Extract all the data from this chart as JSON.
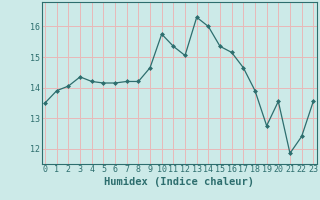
{
  "x": [
    0,
    1,
    2,
    3,
    4,
    5,
    6,
    7,
    8,
    9,
    10,
    11,
    12,
    13,
    14,
    15,
    16,
    17,
    18,
    19,
    20,
    21,
    22,
    23
  ],
  "y": [
    13.5,
    13.9,
    14.05,
    14.35,
    14.2,
    14.15,
    14.15,
    14.2,
    14.2,
    14.65,
    15.75,
    15.35,
    15.05,
    16.3,
    16.0,
    15.35,
    15.15,
    14.65,
    13.9,
    12.75,
    13.55,
    11.85,
    12.4,
    13.55
  ],
  "line_color": "#2d6e6e",
  "marker": "D",
  "marker_size": 2,
  "xlabel": "Humidex (Indice chaleur)",
  "xlabel_fontsize": 7.5,
  "xlabel_color": "#2d6e6e",
  "bg_color": "#cceae8",
  "grid_color": "#e8b8b8",
  "axes_color": "#2d6e6e",
  "ylim": [
    11.5,
    16.8
  ],
  "yticks": [
    12,
    13,
    14,
    15,
    16
  ],
  "xticks": [
    0,
    1,
    2,
    3,
    4,
    5,
    6,
    7,
    8,
    9,
    10,
    11,
    12,
    13,
    14,
    15,
    16,
    17,
    18,
    19,
    20,
    21,
    22,
    23
  ],
  "tick_fontsize": 6,
  "tick_color": "#2d6e6e",
  "xlim": [
    -0.3,
    23.3
  ]
}
